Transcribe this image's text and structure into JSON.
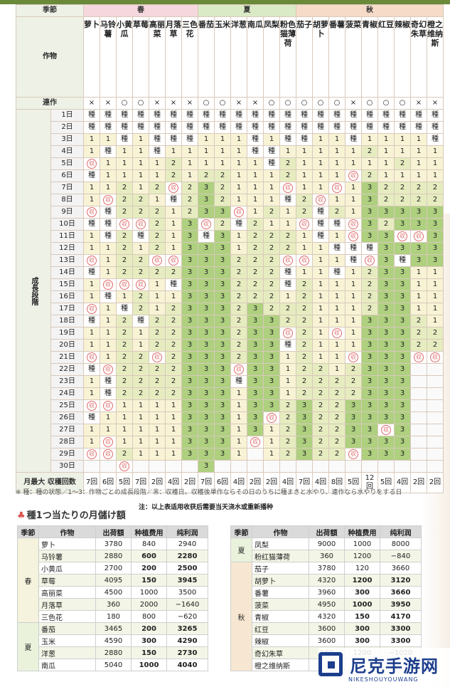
{
  "grow_table": {
    "header_season_label": "季節",
    "header_crop_label": "作物",
    "seasons": [
      {
        "name": "春",
        "span": 7,
        "key": "ssp"
      },
      {
        "name": "夏",
        "span": 6,
        "key": "ssu"
      },
      {
        "name": "秋",
        "span": 9,
        "key": "sau"
      }
    ],
    "crops": [
      "萝卜",
      "马铃薯",
      "小黄瓜",
      "草莓",
      "高丽菜",
      "月落草",
      "三色花",
      "番茄",
      "玉米",
      "洋葱",
      "南瓜",
      "凤梨",
      "粉色猫薄荷",
      "茄子",
      "胡萝卜",
      "番薯",
      "菠菜",
      "青椒",
      "红豆",
      "辣椒",
      "奇幻朱草",
      "橙之维纳斯"
    ],
    "continuous_label": "連作",
    "continuous": [
      "×",
      "×",
      "○",
      "○",
      "×",
      "×",
      "×",
      "○",
      "○",
      "×",
      "×",
      "○",
      "○",
      "○",
      "○",
      "○",
      "×",
      "○",
      "○",
      "○",
      "×",
      "×"
    ],
    "growth_label": "成長段階",
    "days": [
      {
        "label": "1日",
        "v": [
          "種",
          "種",
          "種",
          "種",
          "種",
          "種",
          "種",
          "種",
          "種",
          "種",
          "種",
          "種",
          "種",
          "種",
          "種",
          "種",
          "種",
          "種",
          "種",
          "種",
          "種",
          "種"
        ]
      },
      {
        "label": "2日",
        "v": [
          "種",
          "種",
          "種",
          "種",
          "種",
          "種",
          "種",
          "種",
          "種",
          "種",
          "種",
          "種",
          "種",
          "種",
          "種",
          "種",
          "種",
          "種",
          "種",
          "種",
          "種",
          "種"
        ]
      },
      {
        "label": "3日",
        "v": [
          "1",
          "1",
          "種",
          "1",
          "種",
          "種",
          "種",
          "1",
          "1",
          "1",
          "種",
          "1",
          "種",
          "種",
          "1",
          "1",
          "種",
          "1",
          "1",
          "1",
          "1",
          "種"
        ]
      },
      {
        "label": "4日",
        "v": [
          "1",
          "種",
          "1",
          "1",
          "種",
          "1",
          "1",
          "1",
          "1",
          "1",
          "種",
          "種",
          "1",
          "1",
          "1",
          "1",
          "1",
          "2",
          "1",
          "1",
          "1",
          "1"
        ]
      },
      {
        "label": "5日",
        "v": [
          "収",
          "1",
          "1",
          "1",
          "1",
          "2",
          "1",
          "1",
          "1",
          "1",
          "1",
          "種",
          "2",
          "1",
          "1",
          "1",
          "1",
          "1",
          "1",
          "2",
          "1",
          "1"
        ]
      },
      {
        "label": "6日",
        "v": [
          "種",
          "1",
          "1",
          "1",
          "1",
          "2",
          "1",
          "2",
          "2",
          "1",
          "1",
          "1",
          "2",
          "1",
          "1",
          "1",
          "収",
          "2",
          "1",
          "1",
          "1",
          "1"
        ]
      },
      {
        "label": "7日",
        "v": [
          "1",
          "1",
          "2",
          "1",
          "2",
          "収",
          "2",
          "3",
          "2",
          "1",
          "1",
          "1",
          "収",
          "1",
          "1",
          "収",
          "1",
          "3",
          "2",
          "2",
          "2",
          "2"
        ]
      },
      {
        "label": "8日",
        "v": [
          "1",
          "収",
          "2",
          "2",
          "1",
          "種",
          "2",
          "3",
          "2",
          "1",
          "1",
          "1",
          "種",
          "2",
          "収",
          "1",
          "1",
          "3",
          "2",
          "2",
          "2",
          "2"
        ]
      },
      {
        "label": "9日",
        "v": [
          "収",
          "種",
          "2",
          "2",
          "2",
          "1",
          "2",
          "3",
          "3",
          "収",
          "1",
          "2",
          "1",
          "2",
          "種",
          "2",
          "1",
          "3",
          "3",
          "3",
          "3",
          "3"
        ]
      },
      {
        "label": "10日",
        "v": [
          "種",
          "種",
          "収",
          "収",
          "2",
          "1",
          "3",
          "収",
          "2",
          "種",
          "2",
          "1",
          "1",
          "収",
          "種",
          "種",
          "収",
          "3",
          "2",
          "3",
          "3",
          "3"
        ]
      },
      {
        "label": "11日",
        "v": [
          "1",
          "種",
          "2",
          "種",
          "2",
          "1",
          "3",
          "種",
          "3",
          "1",
          "2",
          "2",
          "2",
          "1",
          "種",
          "1",
          "収",
          "3",
          "3",
          "収",
          "収",
          "3"
        ]
      },
      {
        "label": "12日",
        "v": [
          "1",
          "1",
          "2",
          "1",
          "2",
          "1",
          "3",
          "3",
          "3",
          "1",
          "2",
          "2",
          "2",
          "1",
          "1",
          "種",
          "種",
          "種",
          "3",
          "3",
          "3",
          "3"
        ]
      },
      {
        "label": "13日",
        "v": [
          "収",
          "1",
          "2",
          "2",
          "収",
          "収",
          "3",
          "3",
          "3",
          "2",
          "2",
          "2",
          "収",
          "収",
          "1",
          "1",
          "種",
          "収",
          "3",
          "種",
          "3",
          "3"
        ]
      },
      {
        "label": "14日",
        "v": [
          "種",
          "1",
          "2",
          "2",
          "2",
          "2",
          "3",
          "3",
          "3",
          "2",
          "2",
          "2",
          "種",
          "1",
          "1",
          "種",
          "1",
          "2",
          "3",
          "3",
          "1",
          "1"
        ]
      },
      {
        "label": "15日",
        "v": [
          "1",
          "収",
          "収",
          "収",
          "1",
          "種",
          "3",
          "3",
          "3",
          "2",
          "2",
          "2",
          "種",
          "2",
          "1",
          "1",
          "1",
          "2",
          "3",
          "3",
          "1",
          "1"
        ]
      },
      {
        "label": "16日",
        "v": [
          "1",
          "種",
          "1",
          "2",
          "1",
          "1",
          "3",
          "3",
          "3",
          "2",
          "2",
          "2",
          "1",
          "2",
          "1",
          "1",
          "1",
          "2",
          "3",
          "3",
          "1",
          "1"
        ]
      },
      {
        "label": "17日",
        "v": [
          "収",
          "1",
          "種",
          "2",
          "1",
          "2",
          "3",
          "3",
          "3",
          "2",
          "3",
          "2",
          "2",
          "2",
          "1",
          "1",
          "1",
          "2",
          "3",
          "3",
          "1",
          "1"
        ]
      },
      {
        "label": "18日",
        "v": [
          "種",
          "1",
          "2",
          "種",
          "2",
          "2",
          "3",
          "3",
          "3",
          "2",
          "3",
          "3",
          "2",
          "2",
          "1",
          "1",
          "1",
          "3",
          "3",
          "3",
          "2",
          "1"
        ]
      },
      {
        "label": "19日",
        "v": [
          "1",
          "1",
          "2",
          "1",
          "2",
          "2",
          "3",
          "3",
          "3",
          "2",
          "3",
          "3",
          "収",
          "2",
          "1",
          "収",
          "1",
          "3",
          "3",
          "3",
          "2",
          "2"
        ]
      },
      {
        "label": "20日",
        "v": [
          "1",
          "1",
          "2",
          "1",
          "2",
          "2",
          "3",
          "3",
          "3",
          "2",
          "3",
          "3",
          "種",
          "2",
          "1",
          "1",
          "1",
          "3",
          "3",
          "3",
          "2",
          "2"
        ]
      },
      {
        "label": "21日",
        "v": [
          "収",
          "1",
          "2",
          "2",
          "収",
          "2",
          "3",
          "3",
          "3",
          "2",
          "3",
          "3",
          "1",
          "2",
          "1",
          "1",
          "収",
          "3",
          "3",
          "3",
          "収",
          "収"
        ]
      },
      {
        "label": "22日",
        "v": [
          "種",
          "収",
          "2",
          "2",
          "2",
          "2",
          "3",
          "3",
          "3",
          "収",
          "3",
          "3",
          "1",
          "2",
          "2",
          "1",
          "2",
          "3",
          "3",
          "3",
          "",
          ""
        ]
      },
      {
        "label": "23日",
        "v": [
          "1",
          "種",
          "2",
          "2",
          "2",
          "2",
          "3",
          "3",
          "3",
          "種",
          "3",
          "3",
          "1",
          "2",
          "2",
          "2",
          "2",
          "3",
          "3",
          "3",
          "",
          ""
        ]
      },
      {
        "label": "24日",
        "v": [
          "1",
          "種",
          "2",
          "2",
          "2",
          "2",
          "3",
          "3",
          "3",
          "1",
          "3",
          "3",
          "1",
          "2",
          "2",
          "2",
          "2",
          "3",
          "3",
          "3",
          "",
          ""
        ]
      },
      {
        "label": "25日",
        "v": [
          "収",
          "収",
          "1",
          "1",
          "1",
          "1",
          "3",
          "3",
          "3",
          "1",
          "3",
          "3",
          "2",
          "3",
          "2",
          "2",
          "3",
          "3",
          "3",
          "3",
          "",
          ""
        ]
      },
      {
        "label": "26日",
        "v": [
          "種",
          "1",
          "1",
          "1",
          "1",
          "1",
          "3",
          "3",
          "3",
          "1",
          "3",
          "収",
          "2",
          "3",
          "2",
          "2",
          "3",
          "3",
          "3",
          "3",
          "",
          ""
        ]
      },
      {
        "label": "27日",
        "v": [
          "1",
          "1",
          "1",
          "1",
          "1",
          "1",
          "3",
          "3",
          "3",
          "1",
          "3",
          "1",
          "2",
          "3",
          "2",
          "2",
          "3",
          "3",
          "収",
          "3",
          "",
          ""
        ]
      },
      {
        "label": "28日",
        "v": [
          "1",
          "収",
          "1",
          "1",
          "1",
          "1",
          "3",
          "3",
          "3",
          "1",
          "収",
          "1",
          "2",
          "3",
          "2",
          "2",
          "3",
          "3",
          "3",
          "3",
          "",
          ""
        ]
      },
      {
        "label": "29日",
        "v": [
          "収",
          "収",
          "2",
          "1",
          "1",
          "1",
          "3",
          "3",
          "3",
          "1",
          "",
          "1",
          "2",
          "3",
          "2",
          "2",
          "収",
          "3",
          "3",
          "3",
          "",
          ""
        ]
      },
      {
        "label": "30日",
        "v": [
          "",
          "",
          "収",
          "",
          "",
          "",
          "",
          "3",
          "",
          "",
          "",
          "",
          "",
          "",
          "",
          "",
          "",
          "",
          "",
          "",
          "",
          ""
        ]
      }
    ],
    "max_label": "月最大 収穫回数",
    "max_harvest": [
      "7回",
      "6回",
      "5回",
      "7回",
      "2回",
      "4回",
      "2回",
      "7回",
      "6回",
      "4回",
      "2回",
      "2回",
      "4回",
      "7回",
      "4回",
      "8回",
      "5回",
      "12回",
      "5回",
      "4回",
      "2回",
      "2回"
    ]
  },
  "legend_note": "※ 種：種の状態／1〜3：作物ごとの成長段階／㊚：収穫日。収穫後単作ならその日のうちに種まきと水やり、連作なら水やりをする日",
  "note_cn": "注：以上表适用收获后需要当天浇水或重新播种",
  "profit_section_title": "種1つ当たりの月儲け額",
  "profit_headers": {
    "season": "季節",
    "crop": "作物",
    "ship": "出荷額",
    "cost": "种植费用",
    "net": "纯利润"
  },
  "profit_left": [
    {
      "season": "",
      "crop": "萝卜",
      "ship": "3780",
      "cost": "840",
      "net": "2940",
      "b": false
    },
    {
      "season": "",
      "crop": "马铃薯",
      "ship": "2880",
      "cost": "600",
      "net": "2280",
      "b": true
    },
    {
      "season": "",
      "crop": "小黄瓜",
      "ship": "2700",
      "cost": "200",
      "net": "2500",
      "b": true
    },
    {
      "season": "春",
      "crop": "草莓",
      "ship": "4095",
      "cost": "150",
      "net": "3945",
      "b": true
    },
    {
      "season": "",
      "crop": "高丽菜",
      "ship": "4500",
      "cost": "1000",
      "net": "3500",
      "b": false
    },
    {
      "season": "",
      "crop": "月落草",
      "ship": "360",
      "cost": "2000",
      "net": "−1640",
      "b": false
    },
    {
      "season": "",
      "crop": "三色花",
      "ship": "180",
      "cost": "800",
      "net": "−620",
      "b": false
    },
    {
      "season": "",
      "crop": "番茄",
      "ship": "3465",
      "cost": "200",
      "net": "3265",
      "b": true
    },
    {
      "season": "夏",
      "crop": "玉米",
      "ship": "4590",
      "cost": "300",
      "net": "4290",
      "b": true
    },
    {
      "season": "",
      "crop": "洋葱",
      "ship": "2880",
      "cost": "150",
      "net": "2730",
      "b": true
    },
    {
      "season": "",
      "crop": "南瓜",
      "ship": "5040",
      "cost": "1000",
      "net": "4040",
      "b": true
    }
  ],
  "profit_right": [
    {
      "season": "夏",
      "crop": "凤梨",
      "ship": "9000",
      "cost": "1000",
      "net": "8000",
      "b": false
    },
    {
      "season": "",
      "crop": "粉红猫薄荷",
      "ship": "360",
      "cost": "1200",
      "net": "−840",
      "b": false
    },
    {
      "season": "",
      "crop": "茄子",
      "ship": "3780",
      "cost": "120",
      "net": "3660",
      "b": false
    },
    {
      "season": "",
      "crop": "胡萝卜",
      "ship": "4320",
      "cost": "1200",
      "net": "3120",
      "b": true
    },
    {
      "season": "",
      "crop": "番薯",
      "ship": "3960",
      "cost": "300",
      "net": "3660",
      "b": true
    },
    {
      "season": "",
      "crop": "菠菜",
      "ship": "4950",
      "cost": "1000",
      "net": "3950",
      "b": true
    },
    {
      "season": "秋",
      "crop": "青椒",
      "ship": "4320",
      "cost": "150",
      "net": "4170",
      "b": true
    },
    {
      "season": "",
      "crop": "红豆",
      "ship": "3600",
      "cost": "300",
      "net": "3300",
      "b": true
    },
    {
      "season": "",
      "crop": "辣椒",
      "ship": "3600",
      "cost": "300",
      "net": "3300",
      "b": true
    },
    {
      "season": "",
      "crop": "奇幻朱草",
      "ship": "180",
      "cost": "1200",
      "net": "−1020",
      "b": false
    },
    {
      "season": "",
      "crop": "橙之维纳斯",
      "ship": "",
      "cost": "",
      "net": "",
      "b": false
    }
  ],
  "watermark": {
    "text": "尼克手游网",
    "sub": "NIKESHOUYOUWANG"
  }
}
